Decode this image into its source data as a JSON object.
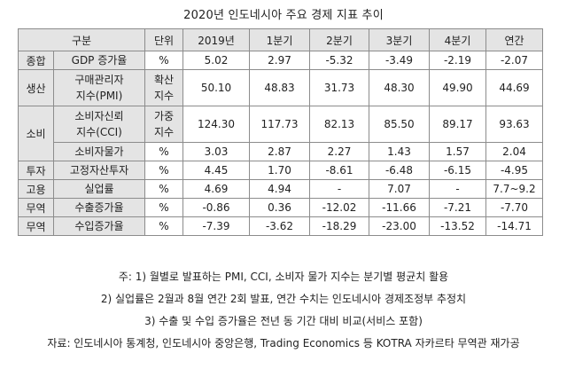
{
  "title": "2020년 인도네시아 주요 경제 지표 추이",
  "table": {
    "headers": [
      "구분",
      "단위",
      "2019년",
      "1분기",
      "2분기",
      "3분기",
      "4분기",
      "연간"
    ],
    "rows": [
      {
        "cat": "종합",
        "item": "GDP 증가율",
        "unit": "%",
        "values": [
          "5.02",
          "2.97",
          "-5.32",
          "-3.49",
          "-2.19",
          "-2.07"
        ]
      },
      {
        "cat": "생산",
        "item": "구매관리자\n지수(PMI)",
        "unit": "확산\n지수",
        "values": [
          "50.10",
          "48.83",
          "31.73",
          "48.30",
          "49.90",
          "44.69"
        ]
      },
      {
        "cat": "소비",
        "item": "소비자신뢰\n지수(CCI)",
        "unit": "가중\n지수",
        "values": [
          "124.30",
          "117.73",
          "82.13",
          "85.50",
          "89.17",
          "93.63"
        ]
      },
      {
        "item": "소비자물가",
        "unit": "%",
        "values": [
          "3.03",
          "2.87",
          "2.27",
          "1.43",
          "1.57",
          "2.04"
        ]
      },
      {
        "cat": "투자",
        "item": "고정자산투자",
        "unit": "%",
        "values": [
          "4.45",
          "1.70",
          "-8.61",
          "-6.48",
          "-6.15",
          "-4.95"
        ]
      },
      {
        "cat": "고용",
        "item": "실업률",
        "unit": "%",
        "values": [
          "4.69",
          "4.94",
          "-",
          "7.07",
          "-",
          "7.7~9.2"
        ]
      },
      {
        "cat": "무역",
        "item": "수출증가율",
        "unit": "%",
        "values": [
          "-0.86",
          "0.36",
          "-12.02",
          "-11.66",
          "-7.21",
          "-7.70"
        ]
      },
      {
        "cat": "무역",
        "item": "수입증가율",
        "unit": "%",
        "values": [
          "-7.39",
          "-3.62",
          "-18.29",
          "-23.00",
          "-13.52",
          "-14.71"
        ]
      }
    ]
  },
  "notes": [
    "주: 1) 월별로 발표하는 PMI, CCI, 소비자 물가 지수는 분기별 평균치 활용",
    "2) 실업률은 2월과 8월 연간 2회 발표, 연간 수치는 인도네시아 경제조정부 추정치",
    "3) 수출 및 수입 증가율은 전년 동 기간 대비 비교(서비스 포함)",
    "자료: 인도네시아 통계청, 인도네시아 중앙은행, Trading Economics 등 KOTRA 자카르타 무역관 재가공"
  ]
}
